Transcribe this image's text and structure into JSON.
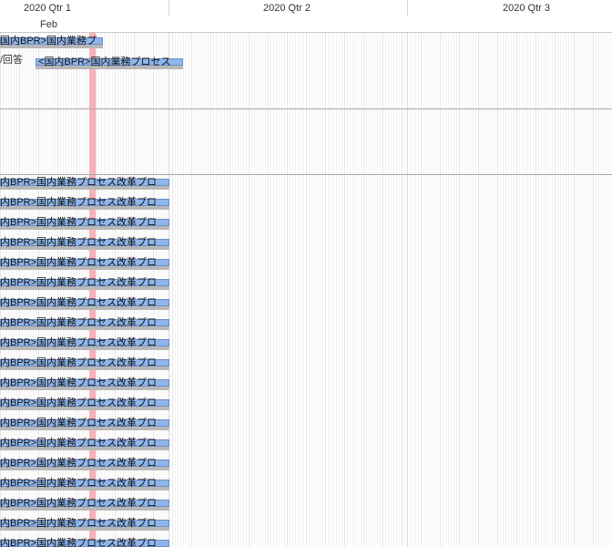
{
  "timeline": {
    "quarters": [
      "2020 Qtr 1",
      "2020 Qtr 2",
      "2020 Qtr 3"
    ],
    "months": [
      "Feb"
    ]
  },
  "tasks": {
    "top": [
      {
        "label": "国内BPR>国内業務プ"
      },
      {
        "label": "<国内BPR>国内業務プロセス",
        "row_note": "/回答"
      }
    ],
    "repeated_label": "内BPR>国内業務プロセス改革プロ",
    "repeated_count": 19
  },
  "colors": {
    "bar_fill": "#8fb6ea",
    "bar_border": "#6d8fc9",
    "bar_shadow": "#b8b8b8",
    "today_marker": "#f6aab1",
    "grid_line": "#a8a8a8"
  }
}
